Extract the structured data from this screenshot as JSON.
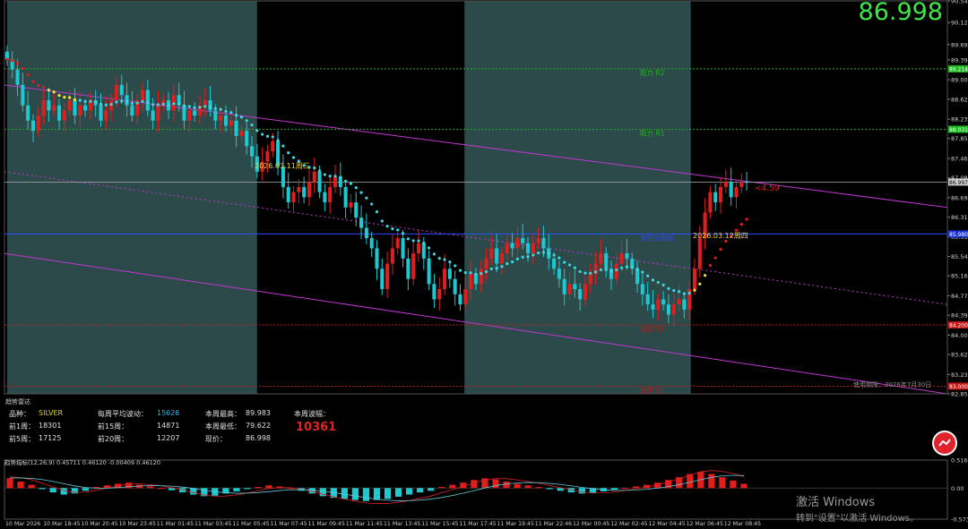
{
  "header": {
    "last_price": "86.998"
  },
  "chart_data": {
    "type": "candlestick",
    "symbol": "SILVER",
    "ylim": [
      82.85,
      90.545
    ],
    "y_ticks": [
      "90.545",
      "90.120",
      "89.690",
      "89.390",
      "89.000",
      "88.620",
      "88.230",
      "87.850",
      "87.460",
      "87.080",
      "86.690",
      "86.310",
      "85.930",
      "85.540",
      "85.160",
      "84.770",
      "84.390",
      "84.000",
      "83.620",
      "83.230",
      "82.850"
    ],
    "x_ticks": [
      "10 Mar 2026",
      "10 Mar 18:45",
      "10 Mar 20:45",
      "10 Mar 23:45",
      "11 Mar 01:45",
      "11 Mar 03:45",
      "11 Mar 05:45",
      "11 Mar 07:45",
      "11 Mar 09:45",
      "11 Mar 11:45",
      "11 Mar 13:45",
      "11 Mar 15:45",
      "11 Mar 17:45",
      "11 Mar 19:45",
      "11 Mar 22:46",
      "12 Mar 00:45",
      "12 Mar 02:45",
      "12 Mar 04:45",
      "12 Mar 06:45",
      "12 Mar 08:45"
    ],
    "price_axis_badges": [
      {
        "value": 89.214,
        "label": "89.214",
        "color": "#1fb51f"
      },
      {
        "value": 88.031,
        "label": "88.031",
        "color": "#1fb51f"
      },
      {
        "value": 86.997,
        "label": "86.997",
        "color": "#cfcfcf"
      },
      {
        "value": 85.98,
        "label": "85.980",
        "color": "#1a34d8"
      },
      {
        "value": 84.2,
        "label": "84.200",
        "color": "#c01818"
      },
      {
        "value": 83.0,
        "label": "83.000",
        "color": "#c01818"
      }
    ],
    "levels": [
      {
        "value": 89.214,
        "label": "阻力 R2",
        "color": "#1fb51f"
      },
      {
        "value": 88.031,
        "label": "阻力 R1",
        "color": "#1fb51f"
      },
      {
        "value": 85.98,
        "label": "多空分割线",
        "color": "#2a4cff"
      },
      {
        "value": 84.2,
        "label": "支撑 S1",
        "color": "#c01818"
      },
      {
        "value": 83.0,
        "label": "支撑 S2",
        "color": "#c01818"
      }
    ],
    "date_labels": [
      "2026.03.11周三",
      "2026.03.12周四"
    ],
    "distance_label": "<4.59",
    "expiry_note": "使用期限：2026年7月30日",
    "series": [
      {
        "kind": "close",
        "values": [
          89.4,
          89.2,
          88.9,
          88.5,
          88.2,
          88.0,
          88.3,
          88.6,
          88.4,
          88.5,
          88.2,
          88.4,
          88.6,
          88.3,
          88.5,
          88.4,
          88.6,
          88.5,
          88.2,
          88.4,
          88.6,
          88.9,
          88.7,
          88.5,
          88.3,
          88.6,
          88.8,
          88.4,
          88.2,
          88.5,
          88.6,
          88.4,
          88.7,
          88.5,
          88.2,
          88.4,
          88.3,
          88.5,
          88.6,
          88.4,
          88.2,
          88.3,
          88.1,
          88.2,
          87.9,
          88.0,
          87.7,
          87.5,
          87.2,
          87.4,
          87.6,
          87.8,
          87.3,
          86.9,
          86.6,
          86.8,
          86.9,
          86.7,
          87.0,
          87.2,
          86.8,
          86.6,
          86.9,
          87.1,
          86.9,
          86.5,
          86.6,
          86.3,
          86.1,
          85.9,
          85.7,
          85.3,
          84.9,
          85.4,
          85.7,
          85.9,
          85.5,
          85.1,
          85.6,
          85.8,
          85.5,
          85.0,
          84.7,
          84.9,
          85.3,
          85.1,
          84.8,
          84.6,
          84.9,
          85.2,
          85.0,
          85.3,
          85.5,
          85.7,
          85.4,
          85.6,
          85.8,
          85.7,
          85.9,
          85.8,
          85.6,
          85.8,
          85.9,
          85.7,
          85.5,
          85.3,
          85.1,
          84.8,
          85.0,
          84.9,
          84.7,
          85.0,
          85.2,
          85.4,
          85.6,
          85.3,
          85.1,
          85.4,
          85.6,
          85.5,
          85.3,
          85.0,
          84.8,
          84.6,
          84.5,
          84.7,
          84.6,
          84.4,
          84.6,
          84.7,
          84.5,
          84.9,
          85.3,
          85.9,
          86.4,
          86.8,
          86.6,
          86.9,
          87.0,
          86.7,
          86.9,
          87.0,
          86.998
        ]
      },
      {
        "kind": "upper_channel",
        "values": [
          88.9,
          86.5
        ]
      },
      {
        "kind": "mid_channel",
        "values": [
          87.2,
          84.6
        ]
      },
      {
        "kind": "lower_channel",
        "values": [
          85.6,
          82.85
        ]
      }
    ],
    "sessions_shaded": [
      [
        0,
        0.265
      ],
      [
        0.485,
        0.725
      ]
    ],
    "indicator": {
      "title": "趋势指标(12,26,9) 0.45711 0.46120 -0.00409 0.46120",
      "ylim": [
        -0.5734,
        0.5169
      ],
      "y_ticks": [
        "0.5169",
        "0.00",
        "-0.5734"
      ],
      "histogram": [
        0.18,
        0.12,
        0.06,
        -0.02,
        -0.08,
        -0.12,
        -0.1,
        -0.05,
        0.02,
        0.05,
        0.08,
        0.1,
        0.06,
        0.03,
        0.0,
        -0.04,
        -0.08,
        -0.12,
        -0.15,
        -0.14,
        -0.1,
        -0.06,
        -0.02,
        0.02,
        0.05,
        0.03,
        0.0,
        -0.05,
        -0.1,
        -0.15,
        -0.18,
        -0.2,
        -0.22,
        -0.24,
        -0.22,
        -0.2,
        -0.16,
        -0.12,
        -0.08,
        -0.05,
        0.02,
        0.06,
        0.1,
        0.15,
        0.18,
        0.16,
        0.12,
        0.08,
        0.05,
        0.02,
        -0.02,
        -0.05,
        -0.08,
        -0.1,
        -0.09,
        -0.06,
        -0.03,
        0.0,
        0.03,
        0.06,
        0.1,
        0.15,
        0.2,
        0.26,
        0.3,
        0.26,
        0.2,
        0.14,
        0.08
      ]
    }
  },
  "info_panel": {
    "title": "趋势雷达",
    "symbol_label": "品种：",
    "symbol_value": "SILVER",
    "week1_label": "前1周：",
    "week1_value": "18301",
    "week5_label": "前5周：",
    "week5_value": "17125",
    "avg_label": "每周平均波动：",
    "avg_value": "15626",
    "week15_label": "前15周：",
    "week15_value": "14871",
    "week20_label": "前20周：",
    "week20_value": "12207",
    "high_label": "本周最高：",
    "high_value": "89.983",
    "low_label": "本周最低：",
    "low_value": "79.622",
    "now_label": "现价：",
    "now_value": "86.998",
    "range_label": "本周波幅：",
    "range_value": "10361"
  },
  "watermark": {
    "line1": "激活 Windows",
    "line2": "转到\"设置\"以激活 Windows。"
  },
  "colors": {
    "up": "#e01e1e",
    "down": "#1ec8d0",
    "ma": "#3fd6e0",
    "ma_hot": "#f0e33a",
    "ma_red": "#e01e1e"
  }
}
